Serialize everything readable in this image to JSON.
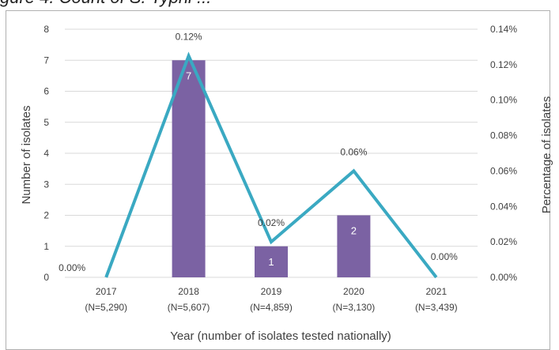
{
  "header": {
    "partial_title": "gure 4. Count of S. Typhi ..."
  },
  "chart_data": {
    "type": "bar+line",
    "x_title": "Year (number of isolates tested nationally)",
    "y_left_title": "Number of isolates",
    "y_right_title": "Percentage of isolates",
    "y_left_range": [
      0,
      8
    ],
    "y_left_ticks": [
      "0",
      "1",
      "2",
      "3",
      "4",
      "5",
      "6",
      "7",
      "8"
    ],
    "y_right_range": [
      0,
      0.14
    ],
    "y_right_ticks": [
      "0.00%",
      "0.02%",
      "0.04%",
      "0.06%",
      "0.08%",
      "0.10%",
      "0.12%",
      "0.14%"
    ],
    "categories": [
      {
        "year": "2017",
        "n": "(N=5,290)"
      },
      {
        "year": "2018",
        "n": "(N=5,607)"
      },
      {
        "year": "2019",
        "n": "(N=4,859)"
      },
      {
        "year": "2020",
        "n": "(N=3,130)"
      },
      {
        "year": "2021",
        "n": "(N=3,439)"
      }
    ],
    "bar_values": [
      0,
      7,
      1,
      2,
      0
    ],
    "bar_labels": [
      "",
      "7",
      "1",
      "2",
      ""
    ],
    "line_values": [
      0.0,
      0.125,
      0.02,
      0.06,
      0.0
    ],
    "line_labels": [
      "0.00%",
      "0.12%",
      "0.02%",
      "0.06%",
      "0.00%"
    ],
    "colors": {
      "bar": "#7b62a3",
      "line": "#3aa9c2",
      "grid": "#d9d9d9",
      "text": "#404040"
    },
    "grid": true
  }
}
